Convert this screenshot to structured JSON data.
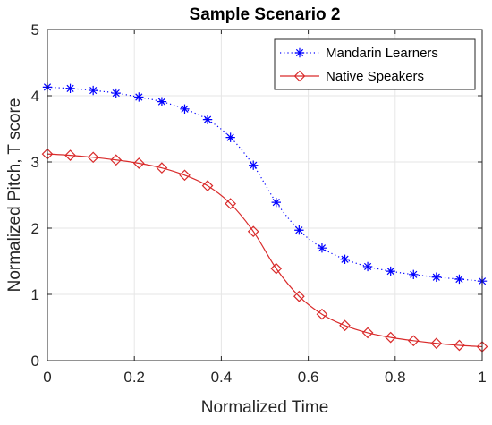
{
  "chart_data": {
    "type": "line",
    "title": "Sample Scenario 2",
    "xlabel": "Normalized Time",
    "ylabel": "Normalized Pitch, T score",
    "xlim": [
      0,
      1
    ],
    "ylim": [
      0,
      5
    ],
    "xticks": [
      0,
      0.2,
      0.4,
      0.6,
      0.8,
      1
    ],
    "xtick_labels": [
      "0",
      "0.2",
      "0.4",
      "0.6",
      "0.8",
      "1"
    ],
    "yticks": [
      0,
      1,
      2,
      3,
      4,
      5
    ],
    "ytick_labels": [
      "0",
      "1",
      "2",
      "3",
      "4",
      "5"
    ],
    "grid": true,
    "legend_position": "top-right",
    "x": [
      0,
      0.0526,
      0.1053,
      0.1579,
      0.2105,
      0.2632,
      0.3158,
      0.3684,
      0.4211,
      0.4737,
      0.5263,
      0.5789,
      0.6316,
      0.6842,
      0.7368,
      0.7895,
      0.8421,
      0.8947,
      0.9474,
      1
    ],
    "series": [
      {
        "name": "Mandarin Learners",
        "color": "#0000ff",
        "line_style": "dotted",
        "marker": "asterisk",
        "values": [
          4.13,
          4.11,
          4.08,
          4.04,
          3.98,
          3.91,
          3.8,
          3.64,
          3.37,
          2.95,
          2.39,
          1.97,
          1.7,
          1.53,
          1.42,
          1.35,
          1.3,
          1.26,
          1.23,
          1.2
        ]
      },
      {
        "name": "Native Speakers",
        "color": "#d92b2b",
        "line_style": "solid",
        "marker": "diamond",
        "values": [
          3.12,
          3.1,
          3.07,
          3.03,
          2.98,
          2.91,
          2.8,
          2.64,
          2.37,
          1.95,
          1.39,
          0.97,
          0.7,
          0.53,
          0.42,
          0.35,
          0.3,
          0.26,
          0.23,
          0.21
        ]
      }
    ]
  }
}
